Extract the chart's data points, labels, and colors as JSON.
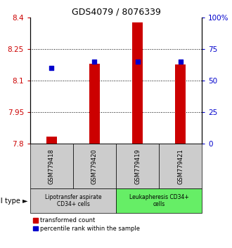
{
  "title": "GDS4079 / 8076339",
  "samples": [
    "GSM779418",
    "GSM779420",
    "GSM779419",
    "GSM779421"
  ],
  "red_bar_bottom": 7.8,
  "red_bar_tops": [
    7.833,
    8.18,
    8.375,
    8.175
  ],
  "blue_dot_pct": [
    60,
    65,
    65,
    65
  ],
  "ylim_left": [
    7.8,
    8.4
  ],
  "ylim_right": [
    0,
    100
  ],
  "yticks_left": [
    7.8,
    7.95,
    8.1,
    8.25,
    8.4
  ],
  "yticks_right": [
    0,
    25,
    50,
    75,
    100
  ],
  "ytick_labels_left": [
    "7.8",
    "7.95",
    "8.1",
    "8.25",
    "8.4"
  ],
  "ytick_labels_right": [
    "0",
    "25",
    "50",
    "75",
    "100%"
  ],
  "grid_lines": [
    7.95,
    8.1,
    8.25
  ],
  "bar_color": "#cc0000",
  "dot_color": "#0000cc",
  "cell_type_groups": [
    {
      "label": "Lipotransfer aspirate\nCD34+ cells",
      "samples": [
        0,
        1
      ],
      "color": "#cccccc"
    },
    {
      "label": "Leukapheresis CD34+\ncells",
      "samples": [
        2,
        3
      ],
      "color": "#66ee66"
    }
  ],
  "cell_type_label": "cell type",
  "legend_red": "transformed count",
  "legend_blue": "percentile rank within the sample",
  "left_axis_color": "#cc0000",
  "right_axis_color": "#0000cc",
  "bar_width": 0.25,
  "figsize": [
    3.3,
    3.54
  ],
  "dpi": 100
}
